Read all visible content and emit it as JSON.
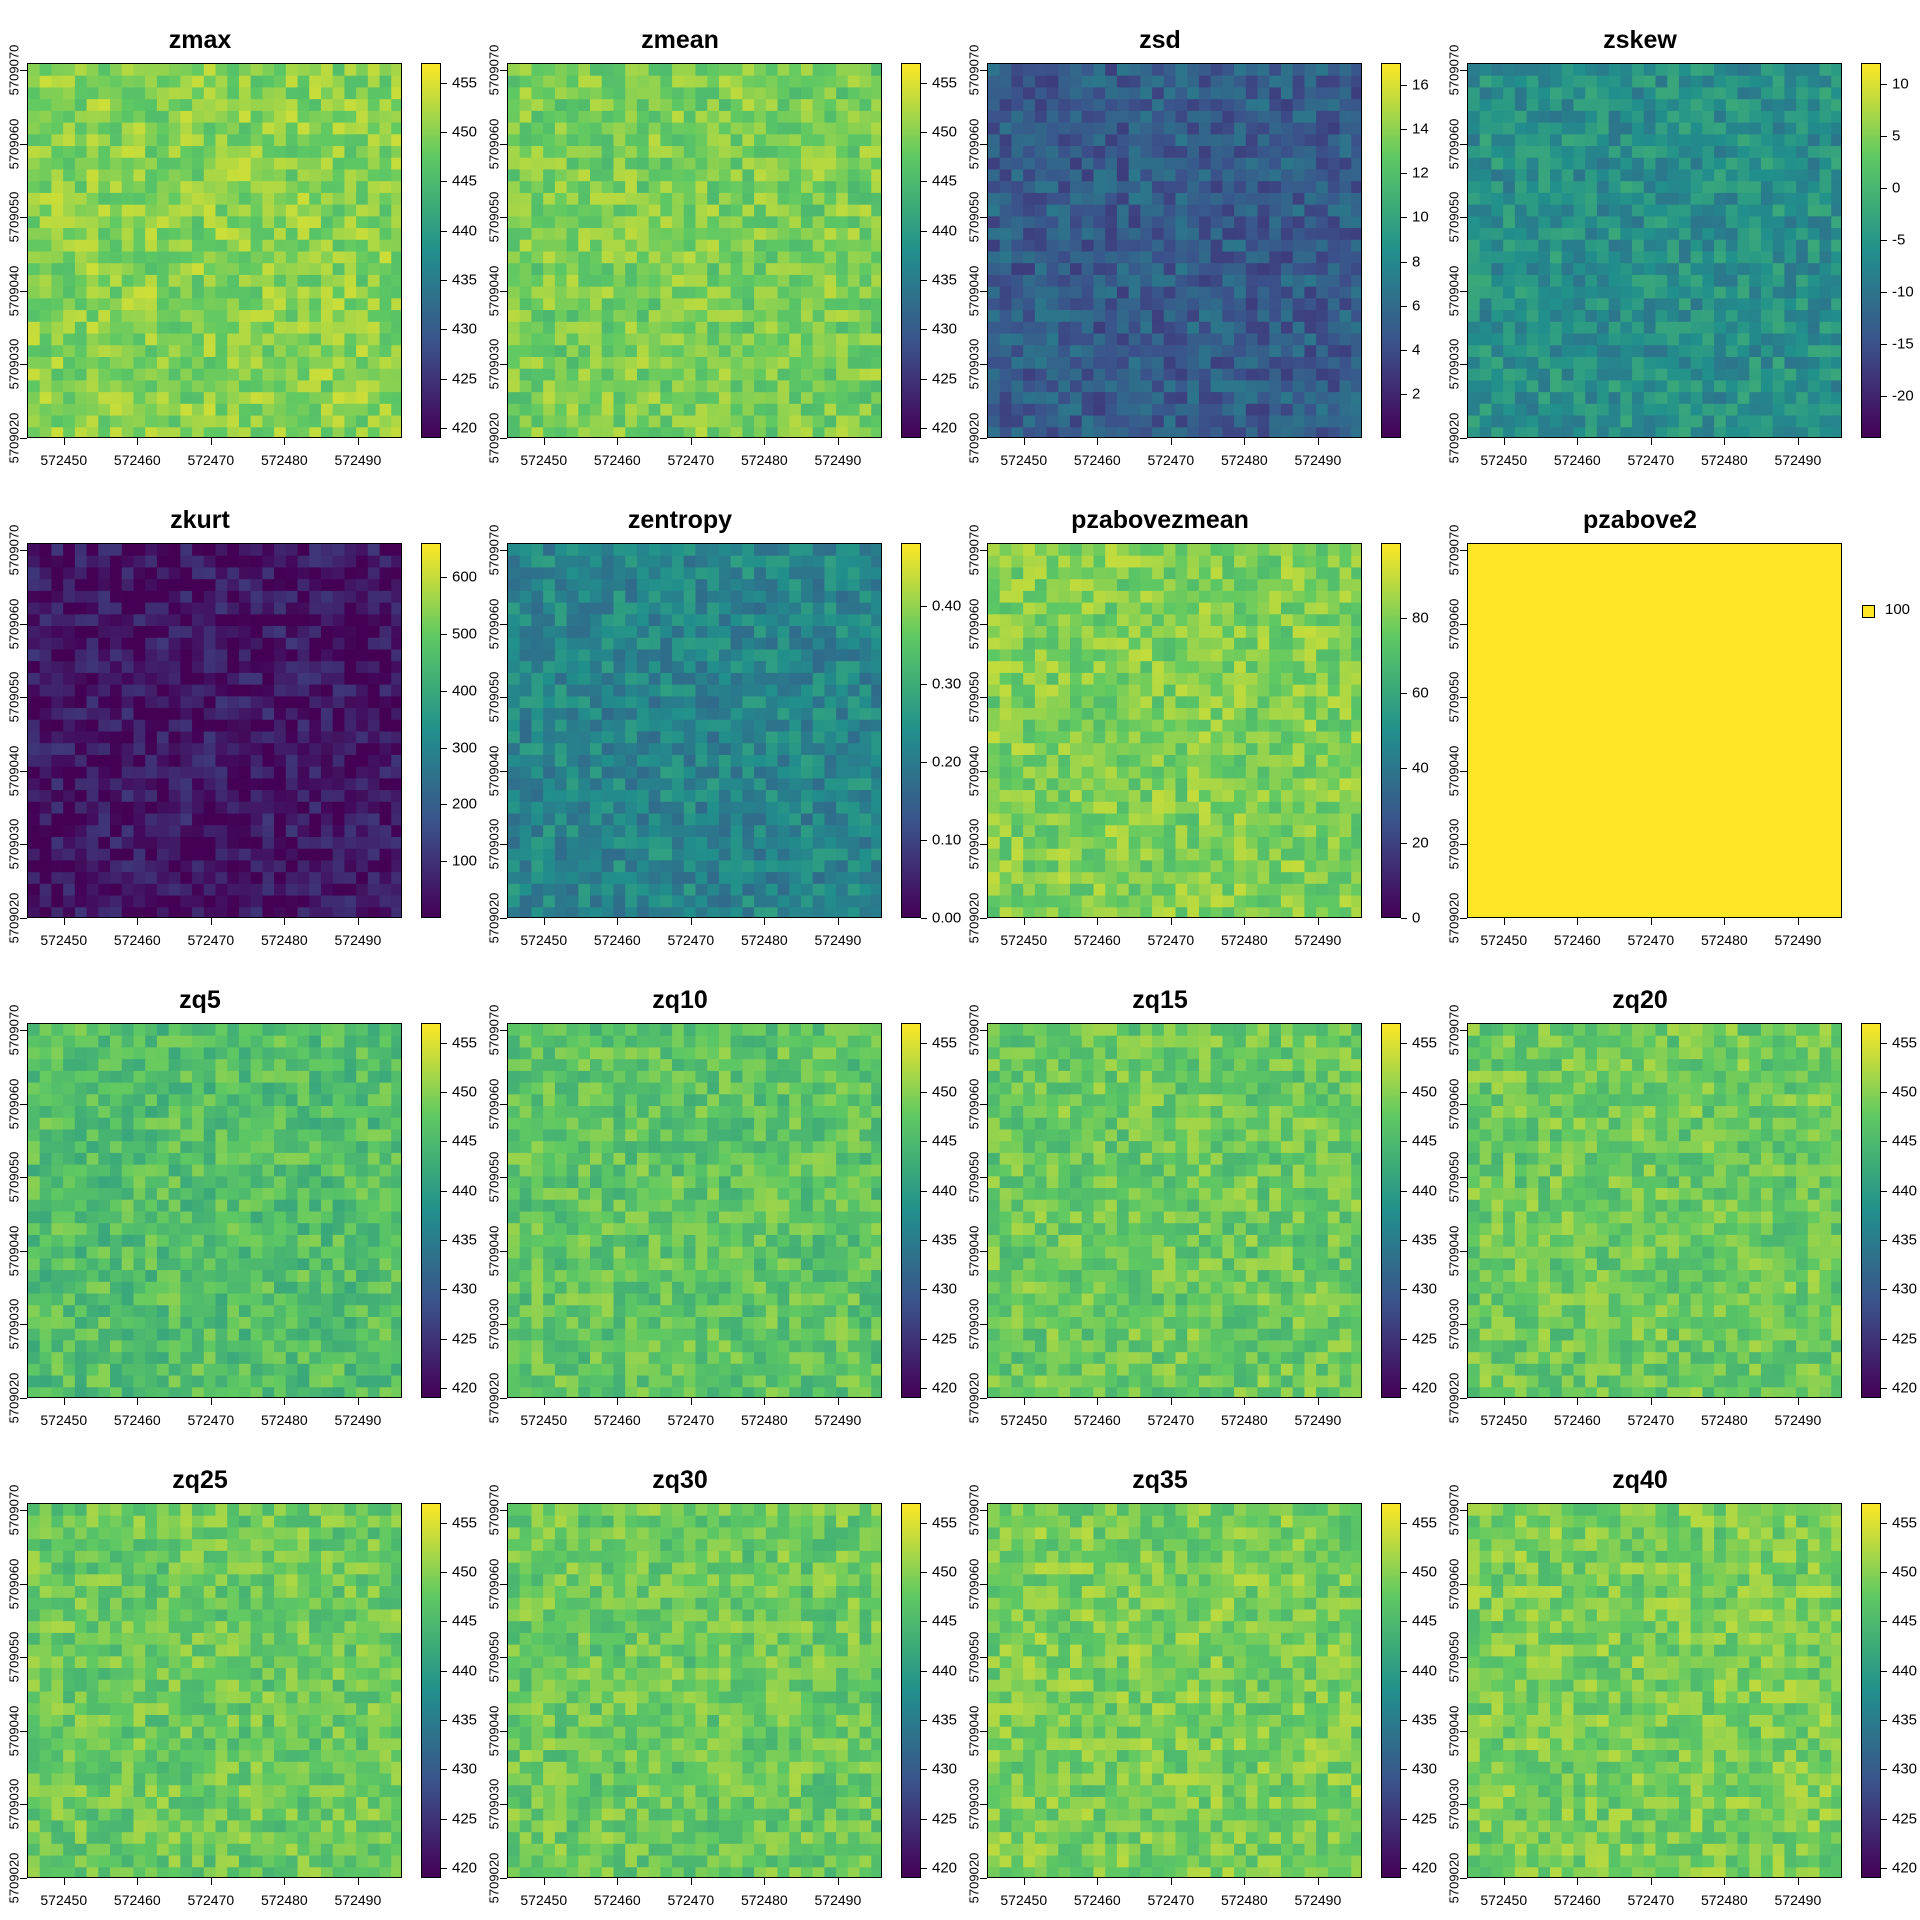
{
  "x_ticks": [
    "572450",
    "572460",
    "572470",
    "572480",
    "572490"
  ],
  "y_ticks": [
    "5709020",
    "5709030",
    "5709040",
    "5709050",
    "5709060",
    "5709070"
  ],
  "palette": [
    "#440154",
    "#3b528b",
    "#21908c",
    "#5dc863",
    "#fde725"
  ],
  "chart_data": [
    {
      "title": "zmax",
      "type": "heatmap",
      "legend_labels": [
        "420",
        "425",
        "430",
        "435",
        "440",
        "445",
        "450",
        "455"
      ],
      "legend_range": [
        419,
        457
      ],
      "typical_value": 450
    },
    {
      "title": "zmean",
      "type": "heatmap",
      "legend_labels": [
        "420",
        "425",
        "430",
        "435",
        "440",
        "445",
        "450",
        "455"
      ],
      "legend_range": [
        419,
        457
      ],
      "typical_value": 449
    },
    {
      "title": "zsd",
      "type": "heatmap",
      "legend_labels": [
        "2",
        "4",
        "6",
        "8",
        "10",
        "12",
        "14",
        "16"
      ],
      "legend_range": [
        0,
        17
      ],
      "typical_value": 5
    },
    {
      "title": "zskew",
      "type": "heatmap",
      "legend_labels": [
        "-20",
        "-15",
        "-10",
        "-5",
        "0",
        "5",
        "10"
      ],
      "legend_range": [
        -24,
        12
      ],
      "typical_value": -6
    },
    {
      "title": "zkurt",
      "type": "heatmap",
      "legend_labels": [
        "100",
        "200",
        "300",
        "400",
        "500",
        "600"
      ],
      "legend_range": [
        0,
        660
      ],
      "typical_value": 40
    },
    {
      "title": "zentropy",
      "type": "heatmap",
      "legend_labels": [
        "0.00",
        "0.10",
        "0.20",
        "0.30",
        "0.40"
      ],
      "legend_range": [
        0,
        0.48
      ],
      "typical_value": 0.22
    },
    {
      "title": "pzabovezmean",
      "type": "heatmap",
      "legend_labels": [
        "0",
        "20",
        "40",
        "60",
        "80"
      ],
      "legend_range": [
        0,
        100
      ],
      "typical_value": 80
    },
    {
      "title": "pzabove2",
      "type": "heatmap",
      "categorical_label": "100",
      "legend_range": [
        100,
        100
      ],
      "typical_value": 100
    },
    {
      "title": "zq5",
      "type": "heatmap",
      "legend_labels": [
        "420",
        "425",
        "430",
        "435",
        "440",
        "445",
        "450",
        "455"
      ],
      "legend_range": [
        419,
        457
      ],
      "typical_value": 446
    },
    {
      "title": "zq10",
      "type": "heatmap",
      "legend_labels": [
        "420",
        "425",
        "430",
        "435",
        "440",
        "445",
        "450",
        "455"
      ],
      "legend_range": [
        419,
        457
      ],
      "typical_value": 447
    },
    {
      "title": "zq15",
      "type": "heatmap",
      "legend_labels": [
        "420",
        "425",
        "430",
        "435",
        "440",
        "445",
        "450",
        "455"
      ],
      "legend_range": [
        419,
        457
      ],
      "typical_value": 448
    },
    {
      "title": "zq20",
      "type": "heatmap",
      "legend_labels": [
        "420",
        "425",
        "430",
        "435",
        "440",
        "445",
        "450",
        "455"
      ],
      "legend_range": [
        419,
        457
      ],
      "typical_value": 448
    },
    {
      "title": "zq25",
      "type": "heatmap",
      "legend_labels": [
        "420",
        "425",
        "430",
        "435",
        "440",
        "445",
        "450",
        "455"
      ],
      "legend_range": [
        419,
        457
      ],
      "typical_value": 448
    },
    {
      "title": "zq30",
      "type": "heatmap",
      "legend_labels": [
        "420",
        "425",
        "430",
        "435",
        "440",
        "445",
        "450",
        "455"
      ],
      "legend_range": [
        419,
        457
      ],
      "typical_value": 448
    },
    {
      "title": "zq35",
      "type": "heatmap",
      "legend_labels": [
        "420",
        "425",
        "430",
        "435",
        "440",
        "445",
        "450",
        "455"
      ],
      "legend_range": [
        419,
        457
      ],
      "typical_value": 449
    },
    {
      "title": "zq40",
      "type": "heatmap",
      "legend_labels": [
        "420",
        "425",
        "430",
        "435",
        "440",
        "445",
        "450",
        "455"
      ],
      "legend_range": [
        419,
        457
      ],
      "typical_value": 449
    }
  ]
}
